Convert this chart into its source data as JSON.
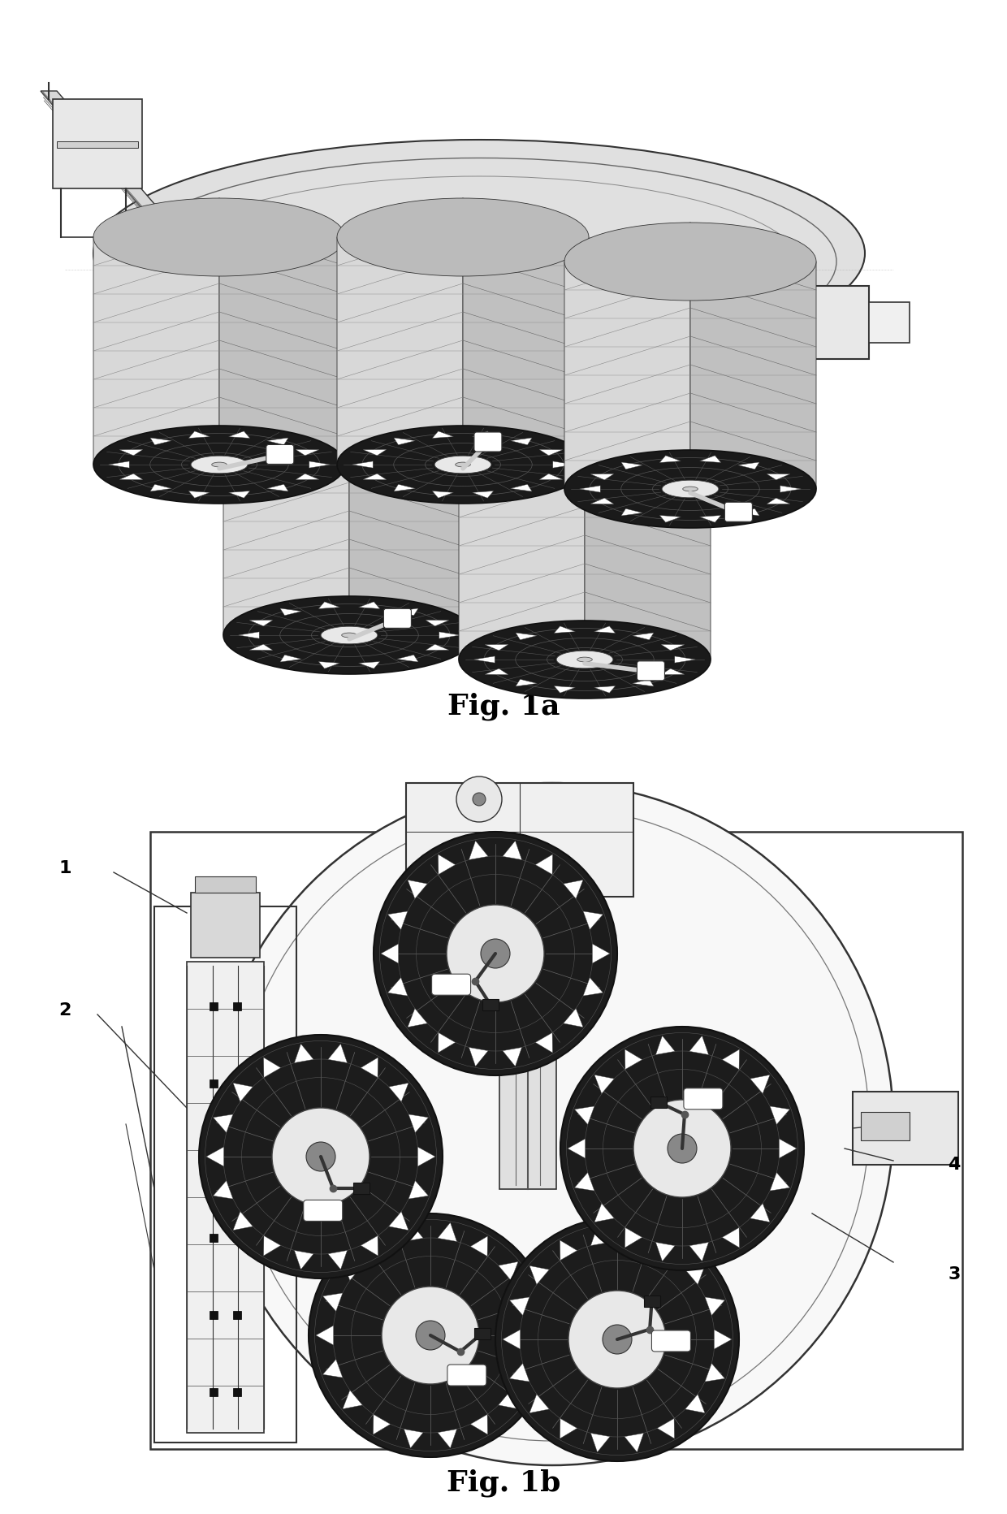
{
  "fig_width": 12.4,
  "fig_height": 18.64,
  "background_color": "#ffffff",
  "fig1a_label": "Fig. 1a",
  "fig1b_label": "Fig. 1b",
  "label_fontsize": 26,
  "label_fontweight": "bold",
  "lc": "#333333",
  "dark": "#111111",
  "mid": "#555555",
  "light": "#aaaaaa",
  "white": "#ffffff",
  "near_white": "#eeeeee",
  "shelf_color": "#777777",
  "top_dark": "#1a1a1a"
}
